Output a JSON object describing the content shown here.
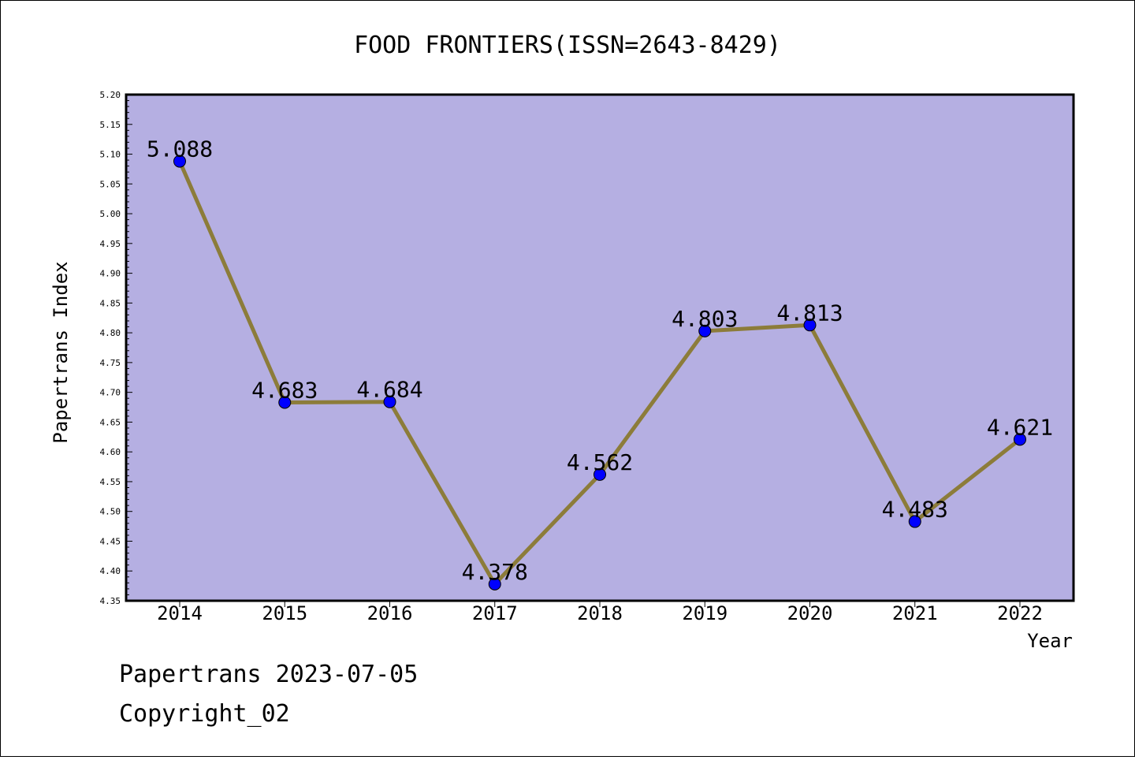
{
  "chart_data": {
    "type": "line",
    "title": "FOOD FRONTIERS(ISSN=2643-8429)",
    "xlabel": "Year",
    "ylabel": "Papertrans Index",
    "categories": [
      "2014",
      "2015",
      "2016",
      "2017",
      "2018",
      "2019",
      "2020",
      "2021",
      "2022"
    ],
    "series": [
      {
        "values": [
          5.088,
          4.683,
          4.684,
          4.378,
          4.562,
          4.803,
          4.813,
          4.483,
          4.621
        ]
      }
    ],
    "data_labels": [
      "5.088",
      "4.683",
      "4.684",
      "4.378",
      "4.562",
      "4.803",
      "4.813",
      "4.483",
      "4.621"
    ],
    "ylim": [
      4.35,
      5.2
    ],
    "yticks": [
      "4.35",
      "4.40",
      "4.45",
      "4.50",
      "4.55",
      "4.60",
      "4.65",
      "4.70",
      "4.75",
      "4.80",
      "4.85",
      "4.90",
      "4.95",
      "5.00",
      "5.05",
      "5.10",
      "5.15",
      "5.20"
    ],
    "grid": false,
    "legend": "none",
    "colors": {
      "plot_background": "#b5afe2",
      "line": "#8c7c3a",
      "marker": "#0000ff"
    }
  },
  "footer": {
    "line1": "Papertrans 2023-07-05",
    "line2": "Copyright_02"
  }
}
